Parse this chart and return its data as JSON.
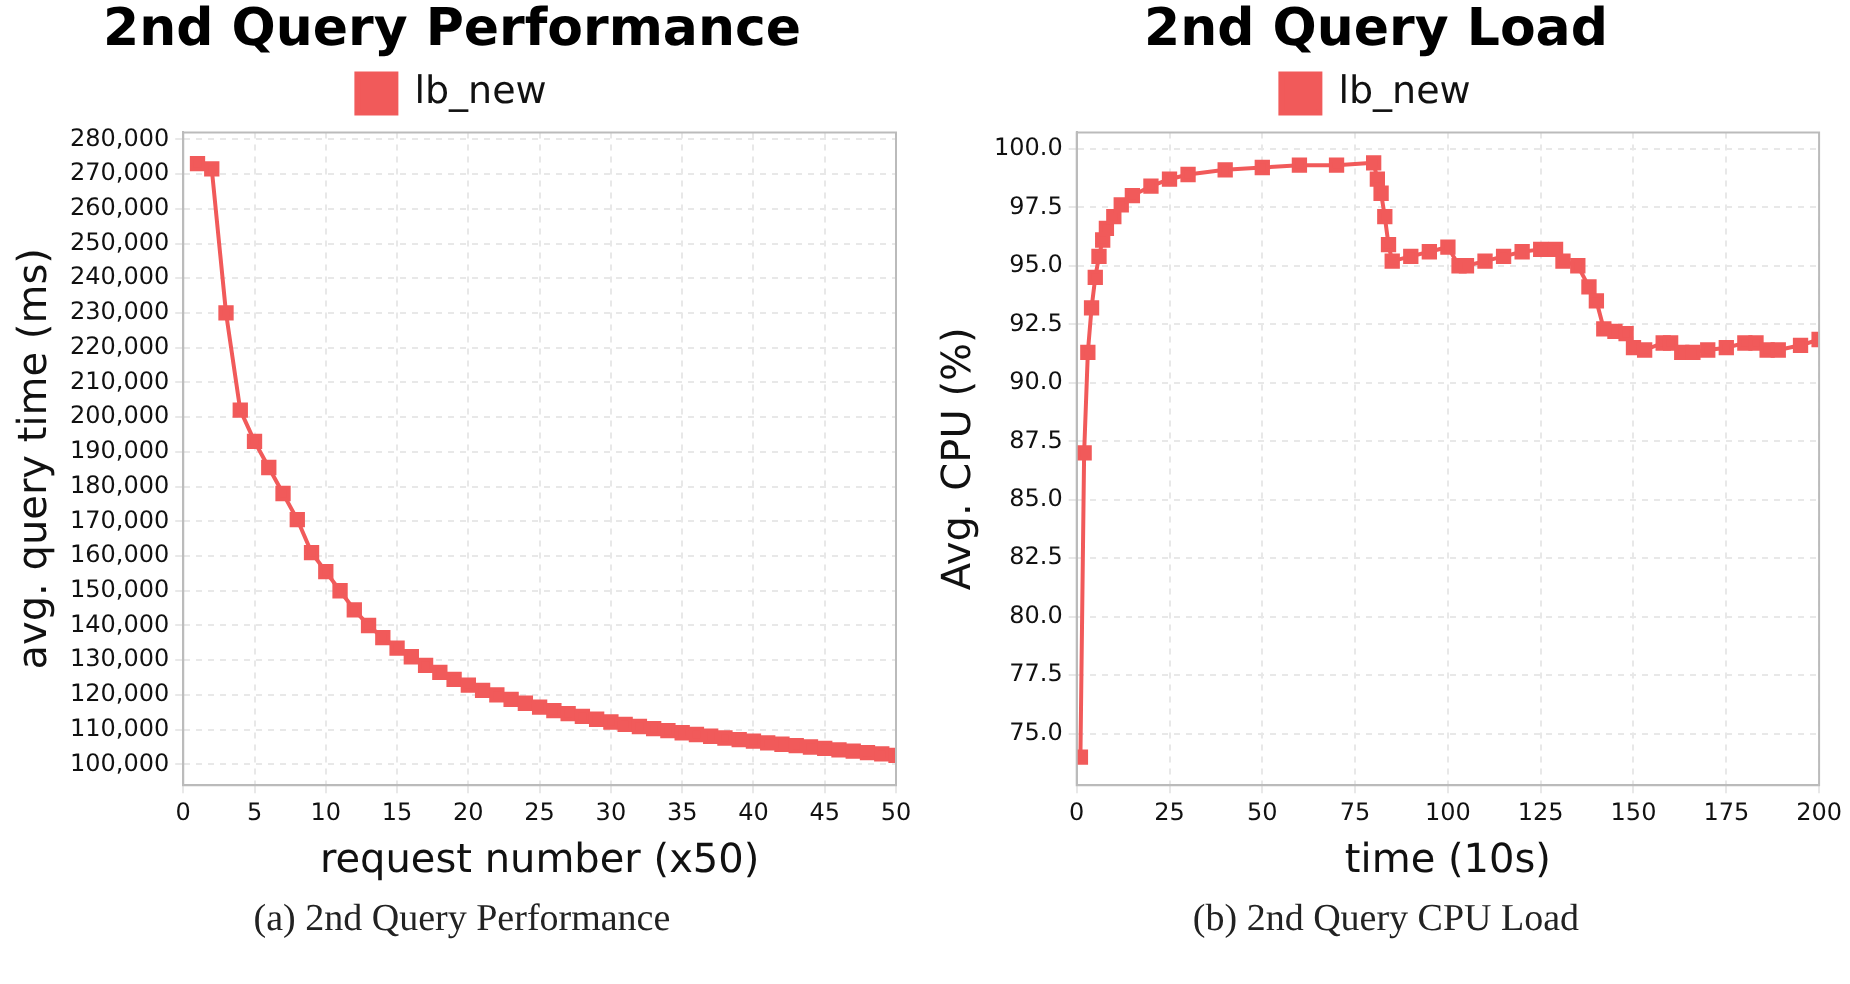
{
  "chart_data": [
    {
      "type": "line",
      "title": "2nd Query Performance",
      "xlabel": "request number (x50)",
      "ylabel": "avg. query time (ms)",
      "annotations": [
        "(a) 2nd Query Performance"
      ],
      "legend": "top",
      "grid": true,
      "marker": "square",
      "line_style": "solid",
      "xlim": [
        0,
        50
      ],
      "xticks": [
        0,
        5,
        10,
        15,
        20,
        25,
        30,
        35,
        40,
        45,
        50
      ],
      "ylim": [
        94000,
        282000
      ],
      "yticks": [
        {
          "value": 100000,
          "label": "100,000"
        },
        {
          "value": 110000,
          "label": "110,000"
        },
        {
          "value": 120000,
          "label": "120,000"
        },
        {
          "value": 130000,
          "label": "130,000"
        },
        {
          "value": 140000,
          "label": "140,000"
        },
        {
          "value": 150000,
          "label": "150,000"
        },
        {
          "value": 160000,
          "label": "160,000"
        },
        {
          "value": 170000,
          "label": "170,000"
        },
        {
          "value": 180000,
          "label": "180,000"
        },
        {
          "value": 190000,
          "label": "190,000"
        },
        {
          "value": 200000,
          "label": "200,000"
        },
        {
          "value": 210000,
          "label": "210,000"
        },
        {
          "value": 220000,
          "label": "220,000"
        },
        {
          "value": 230000,
          "label": "230,000"
        },
        {
          "value": 240000,
          "label": "240,000"
        },
        {
          "value": 250000,
          "label": "250,000"
        },
        {
          "value": 260000,
          "label": "260,000"
        },
        {
          "value": 270000,
          "label": "270,000"
        },
        {
          "value": 280000,
          "label": "280,000"
        }
      ],
      "x": [
        1,
        2,
        3,
        4,
        5,
        6,
        7,
        8,
        9,
        10,
        11,
        12,
        13,
        14,
        15,
        16,
        17,
        18,
        19,
        20,
        21,
        22,
        23,
        24,
        25,
        26,
        27,
        28,
        29,
        30,
        31,
        32,
        33,
        34,
        35,
        36,
        37,
        38,
        39,
        40,
        41,
        42,
        43,
        44,
        45,
        46,
        47,
        48,
        49,
        50
      ],
      "series": [
        {
          "name": "lb_new",
          "color": "#f15a5a",
          "values": [
            273000,
            271500,
            230000,
            202000,
            193000,
            185500,
            178000,
            170500,
            161000,
            155500,
            150000,
            144500,
            140000,
            136500,
            133500,
            131000,
            128500,
            126500,
            124500,
            122800,
            121300,
            120000,
            118700,
            117600,
            116500,
            115500,
            114600,
            113800,
            113000,
            112200,
            111500,
            110900,
            110300,
            109700,
            109100,
            108600,
            108100,
            107600,
            107100,
            106700,
            106200,
            105800,
            105400,
            105000,
            104600,
            104200,
            103800,
            103400,
            103000,
            102600
          ]
        }
      ]
    },
    {
      "type": "line",
      "title": "2nd Query Load",
      "xlabel": "time (10s)",
      "ylabel": "Avg. CPU (%)",
      "annotations": [
        "(b) 2nd Query CPU Load"
      ],
      "legend": "top",
      "grid": true,
      "marker": "square",
      "line_style": "solid",
      "xlim": [
        0,
        200
      ],
      "xticks": [
        0,
        25,
        50,
        75,
        100,
        125,
        150,
        175,
        200
      ],
      "ylim": [
        72.8,
        100.7
      ],
      "yticks": [
        {
          "value": 75,
          "label": "75.0"
        },
        {
          "value": 77.5,
          "label": "77.5"
        },
        {
          "value": 80,
          "label": "80.0"
        },
        {
          "value": 82.5,
          "label": "82.5"
        },
        {
          "value": 85,
          "label": "85.0"
        },
        {
          "value": 87.5,
          "label": "87.5"
        },
        {
          "value": 90,
          "label": "90.0"
        },
        {
          "value": 92.5,
          "label": "92.5"
        },
        {
          "value": 95,
          "label": "95.0"
        },
        {
          "value": 97.5,
          "label": "97.5"
        },
        {
          "value": 100,
          "label": "100.0"
        }
      ],
      "x": [
        1,
        2,
        3,
        4,
        5,
        6,
        7,
        8,
        10,
        12,
        15,
        20,
        25,
        30,
        40,
        50,
        60,
        70,
        80,
        81,
        82,
        83,
        84,
        85,
        90,
        95,
        100,
        103,
        105,
        110,
        115,
        120,
        125,
        129,
        131,
        135,
        138,
        140,
        142,
        145,
        148,
        150,
        153,
        158,
        160,
        163,
        166,
        170,
        175,
        180,
        183,
        186,
        189,
        195,
        200
      ],
      "series": [
        {
          "name": "lb_new",
          "color": "#f15a5a",
          "values": [
            74.0,
            87.0,
            91.3,
            93.2,
            94.5,
            95.4,
            96.1,
            96.6,
            97.1,
            97.6,
            98.0,
            98.4,
            98.7,
            98.9,
            99.1,
            99.2,
            99.3,
            99.3,
            99.4,
            98.7,
            98.1,
            97.1,
            95.9,
            95.2,
            95.4,
            95.6,
            95.8,
            95.0,
            95.0,
            95.2,
            95.4,
            95.6,
            95.7,
            95.7,
            95.2,
            95.0,
            94.1,
            93.5,
            92.3,
            92.2,
            92.1,
            91.5,
            91.4,
            91.7,
            91.7,
            91.3,
            91.3,
            91.4,
            91.5,
            91.7,
            91.7,
            91.4,
            91.4,
            91.6,
            91.85
          ]
        }
      ]
    }
  ]
}
